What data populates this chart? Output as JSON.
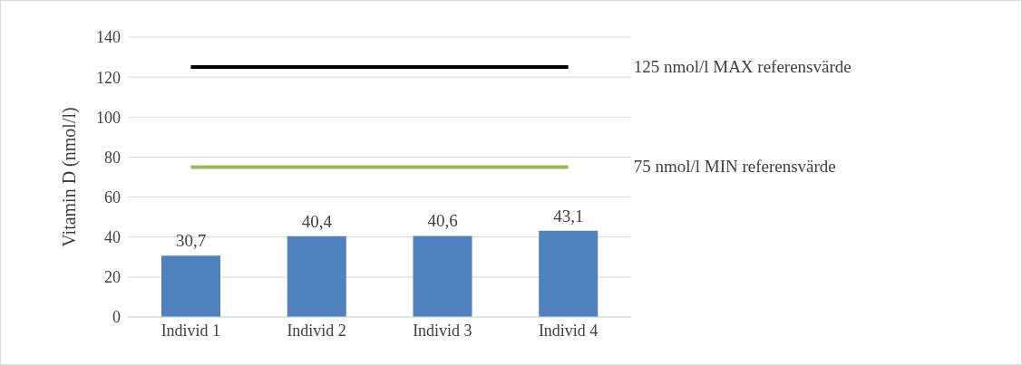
{
  "chart_data": {
    "type": "bar",
    "ylabel": "Vitamin D (nmol/l)",
    "categories": [
      "Individ 1",
      "Individ 2",
      "Individ 3",
      "Individ 4"
    ],
    "series": [
      {
        "color": "#4f81bd",
        "values": [
          30.7,
          40.4,
          40.6,
          43.1
        ],
        "value_labels": [
          "30,7",
          "40,4",
          "40,6",
          "43,1"
        ]
      },
      {
        "type": "line",
        "name": "125 nmol/l MAX referensvärde",
        "color": "#000000",
        "values": [
          125,
          125,
          125,
          125
        ]
      },
      {
        "type": "line",
        "name": "75 nmol/l MIN referensvärde",
        "color": "#9bbb59",
        "values": [
          75,
          75,
          75,
          75
        ]
      }
    ],
    "ylim": [
      0,
      140
    ],
    "yticks": [
      0,
      20,
      40,
      60,
      80,
      100,
      120,
      140
    ],
    "grid": "y",
    "marker": "none"
  }
}
